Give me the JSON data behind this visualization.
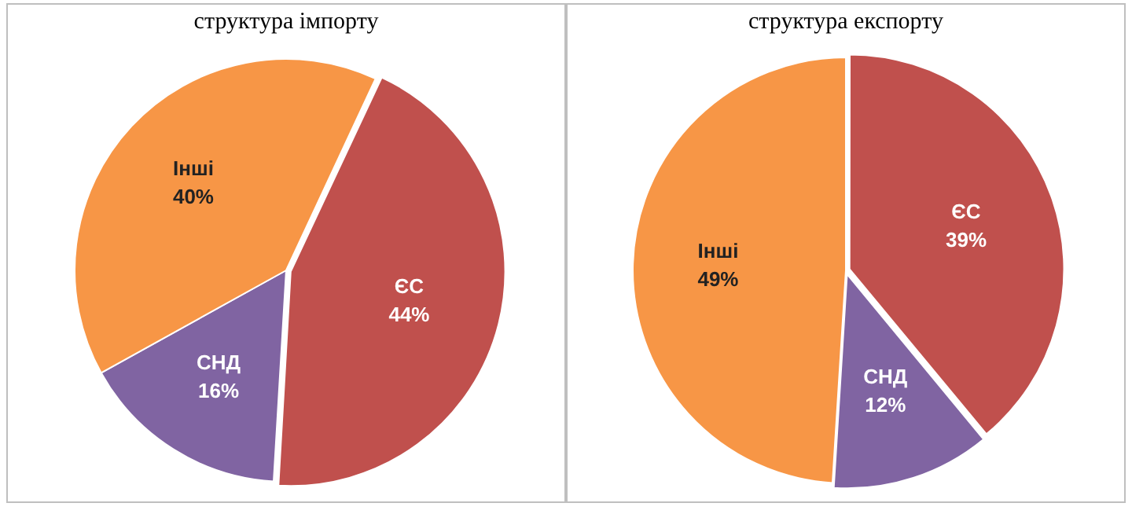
{
  "chart_data": [
    {
      "type": "pie",
      "title": "структура імпорту",
      "categories": [
        "ЄС",
        "СНД",
        "Інші"
      ],
      "values": [
        44,
        16,
        40
      ],
      "value_labels": [
        "44%",
        "16%",
        "40%"
      ],
      "colors": [
        "#c0504d",
        "#8064a2",
        "#f79646"
      ]
    },
    {
      "type": "pie",
      "title": "структура експорту",
      "categories": [
        "ЄС",
        "СНД",
        "Інші"
      ],
      "values": [
        39,
        12,
        49
      ],
      "value_labels": [
        "39%",
        "12%",
        "49%"
      ],
      "colors": [
        "#c0504d",
        "#8064a2",
        "#f79646"
      ]
    }
  ]
}
